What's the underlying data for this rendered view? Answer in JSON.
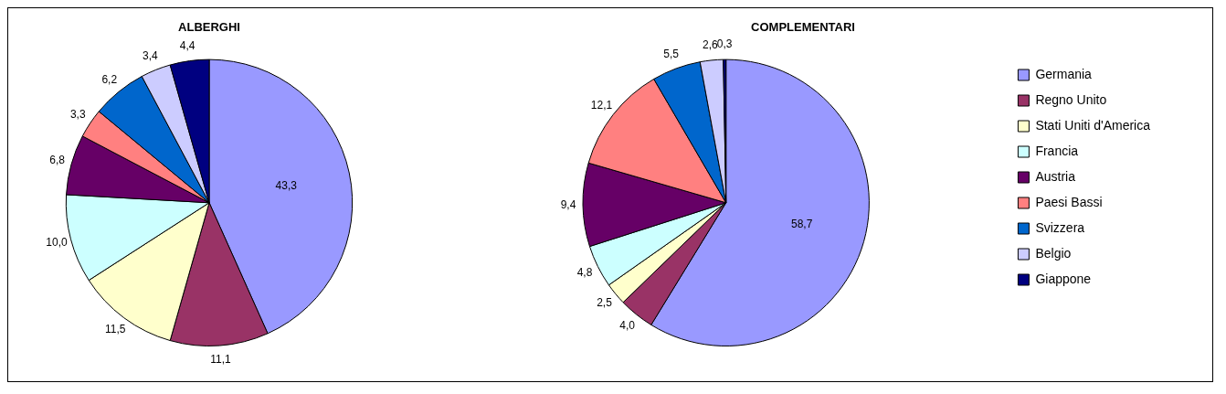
{
  "chart_data": {
    "type": "pie",
    "categories": [
      "Germania",
      "Regno Unito",
      "Stati Uniti d'America",
      "Francia",
      "Austria",
      "Paesi Bassi",
      "Svizzera",
      "Belgio",
      "Giappone"
    ],
    "colors": [
      "#9999ff",
      "#993366",
      "#ffffcc",
      "#ccffff",
      "#660066",
      "#ff8080",
      "#0066cc",
      "#ccccff",
      "#000080"
    ],
    "legend": "right",
    "series": [
      {
        "name": "ALBERGHI",
        "values": [
          43.3,
          11.1,
          11.5,
          10.0,
          6.8,
          3.3,
          6.2,
          3.4,
          4.4
        ],
        "value_labels": [
          "43,3",
          "11,1",
          "11,5",
          "10,0",
          "6,8",
          "3,3",
          "6,2",
          "3,4",
          "4,4"
        ]
      },
      {
        "name": "COMPLEMENTARI",
        "values": [
          58.7,
          4.0,
          2.5,
          4.8,
          9.4,
          12.1,
          5.5,
          2.6,
          0.3
        ],
        "value_labels": [
          "58,7",
          "4,0",
          "2,5",
          "4,8",
          "9,4",
          "12,1",
          "5,5",
          "2,6",
          "0,3"
        ]
      }
    ]
  }
}
